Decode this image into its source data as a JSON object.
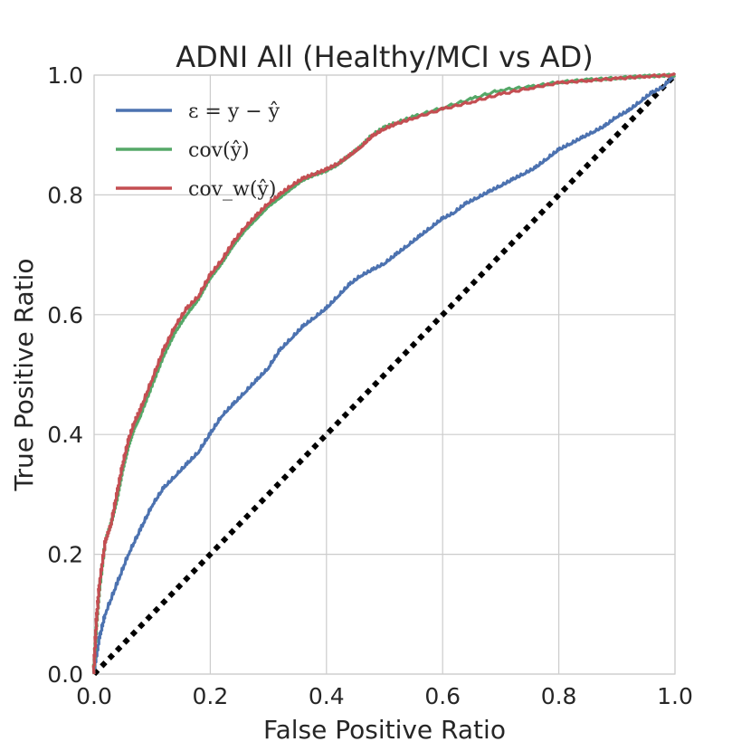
{
  "chart_data": {
    "type": "line",
    "title": "ADNI All (Healthy/MCI vs AD)",
    "xlabel": "False Positive Ratio",
    "ylabel": "True Positive Ratio",
    "xlim": [
      0.0,
      1.0
    ],
    "ylim": [
      0.0,
      1.0
    ],
    "xticks": [
      "0.0",
      "0.2",
      "0.4",
      "0.6",
      "0.8",
      "1.0"
    ],
    "yticks": [
      "0.0",
      "0.2",
      "0.4",
      "0.6",
      "0.8",
      "1.0"
    ],
    "grid": true,
    "legend_position": "top-left",
    "series": [
      {
        "name": "ε = y − ŷ",
        "color": "#4c72b0",
        "x": [
          0.0,
          0.01,
          0.02,
          0.04,
          0.06,
          0.08,
          0.1,
          0.12,
          0.14,
          0.16,
          0.18,
          0.2,
          0.22,
          0.24,
          0.26,
          0.28,
          0.3,
          0.32,
          0.34,
          0.36,
          0.38,
          0.4,
          0.42,
          0.44,
          0.46,
          0.48,
          0.5,
          0.52,
          0.54,
          0.56,
          0.58,
          0.6,
          0.62,
          0.64,
          0.66,
          0.68,
          0.7,
          0.72,
          0.74,
          0.76,
          0.78,
          0.8,
          0.82,
          0.84,
          0.86,
          0.88,
          0.9,
          0.92,
          0.94,
          0.96,
          0.98,
          1.0
        ],
        "y": [
          0.0,
          0.06,
          0.1,
          0.15,
          0.2,
          0.24,
          0.28,
          0.31,
          0.33,
          0.35,
          0.37,
          0.4,
          0.43,
          0.45,
          0.47,
          0.49,
          0.51,
          0.54,
          0.56,
          0.58,
          0.595,
          0.61,
          0.63,
          0.65,
          0.665,
          0.675,
          0.685,
          0.7,
          0.715,
          0.73,
          0.745,
          0.76,
          0.77,
          0.785,
          0.795,
          0.805,
          0.815,
          0.825,
          0.835,
          0.845,
          0.86,
          0.875,
          0.885,
          0.895,
          0.905,
          0.915,
          0.93,
          0.94,
          0.955,
          0.97,
          0.98,
          1.0
        ]
      },
      {
        "name": "cov(ŷ)",
        "color": "#55a868",
        "x": [
          0.0,
          0.005,
          0.01,
          0.02,
          0.03,
          0.04,
          0.05,
          0.06,
          0.07,
          0.08,
          0.1,
          0.12,
          0.14,
          0.16,
          0.18,
          0.2,
          0.22,
          0.24,
          0.26,
          0.28,
          0.3,
          0.32,
          0.34,
          0.36,
          0.38,
          0.4,
          0.42,
          0.44,
          0.46,
          0.48,
          0.5,
          0.52,
          0.55,
          0.6,
          0.65,
          0.7,
          0.75,
          0.8,
          0.85,
          0.9,
          0.95,
          1.0
        ],
        "y": [
          0.0,
          0.08,
          0.14,
          0.22,
          0.25,
          0.29,
          0.34,
          0.38,
          0.41,
          0.43,
          0.48,
          0.53,
          0.57,
          0.6,
          0.625,
          0.66,
          0.685,
          0.715,
          0.74,
          0.76,
          0.78,
          0.795,
          0.81,
          0.825,
          0.833,
          0.84,
          0.85,
          0.865,
          0.88,
          0.9,
          0.912,
          0.92,
          0.93,
          0.945,
          0.96,
          0.975,
          0.98,
          0.988,
          0.992,
          0.995,
          0.998,
          1.0
        ]
      },
      {
        "name": "cov_w(ŷ)",
        "color": "#c44e52",
        "x": [
          0.0,
          0.005,
          0.01,
          0.02,
          0.03,
          0.04,
          0.05,
          0.06,
          0.07,
          0.08,
          0.1,
          0.12,
          0.14,
          0.16,
          0.18,
          0.2,
          0.22,
          0.24,
          0.26,
          0.28,
          0.3,
          0.32,
          0.34,
          0.36,
          0.38,
          0.4,
          0.42,
          0.44,
          0.46,
          0.48,
          0.5,
          0.52,
          0.55,
          0.6,
          0.65,
          0.7,
          0.75,
          0.8,
          0.85,
          0.9,
          0.95,
          1.0
        ],
        "y": [
          0.0,
          0.09,
          0.15,
          0.22,
          0.25,
          0.3,
          0.35,
          0.39,
          0.42,
          0.44,
          0.49,
          0.54,
          0.58,
          0.61,
          0.63,
          0.665,
          0.69,
          0.72,
          0.745,
          0.765,
          0.785,
          0.8,
          0.815,
          0.827,
          0.835,
          0.842,
          0.852,
          0.865,
          0.88,
          0.898,
          0.91,
          0.918,
          0.928,
          0.943,
          0.955,
          0.968,
          0.978,
          0.987,
          0.991,
          0.994,
          0.998,
          1.0
        ]
      }
    ],
    "reference_line": {
      "name": "chance",
      "color": "#000000",
      "style": "dotted",
      "x": [
        0.0,
        1.0
      ],
      "y": [
        0.0,
        1.0
      ]
    }
  },
  "legend": {
    "items": [
      {
        "label": "ε = y − ŷ",
        "color": "#4c72b0"
      },
      {
        "label": "cov(ŷ)",
        "color": "#55a868"
      },
      {
        "label": "cov_w(ŷ)",
        "color": "#c44e52"
      }
    ]
  }
}
